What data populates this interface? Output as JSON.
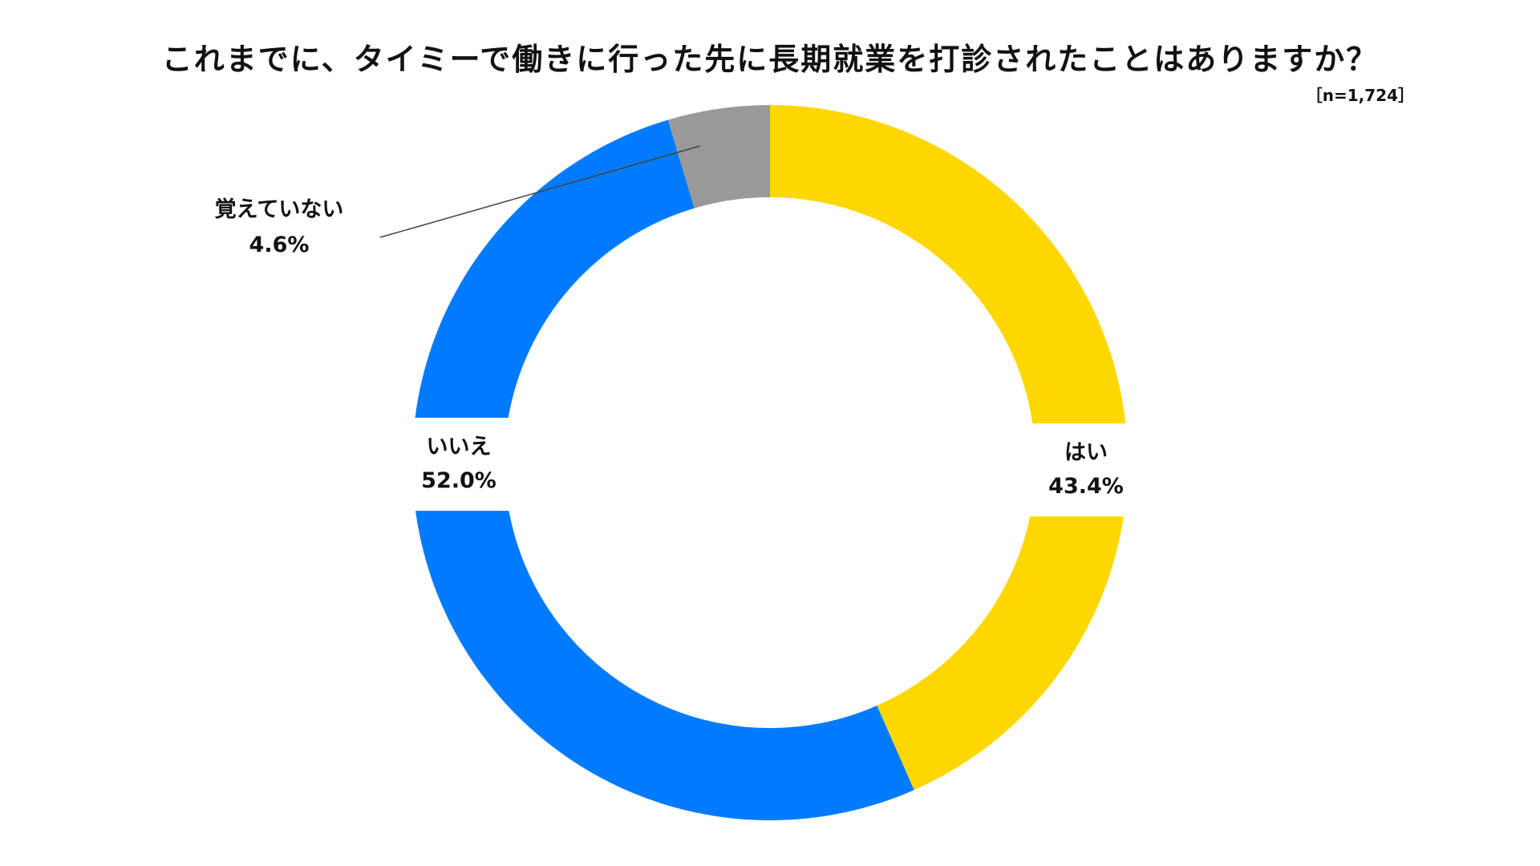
{
  "chart_data": {
    "type": "pie",
    "style": "donut",
    "title": "これまでに、タイミーで働きに行った先に長期就業を打診されたことはありますか？",
    "annotation": "［n=1,724］",
    "categories": [
      "はい",
      "いいえ",
      "覚えていない"
    ],
    "values": [
      43.4,
      52.0,
      4.6
    ],
    "value_labels": [
      "43.4%",
      "52.0%",
      "4.6%"
    ],
    "colors": [
      "#FFD700",
      "#007BFF",
      "#999999"
    ],
    "start": "top",
    "direction": "clockwise",
    "legend": "none"
  }
}
